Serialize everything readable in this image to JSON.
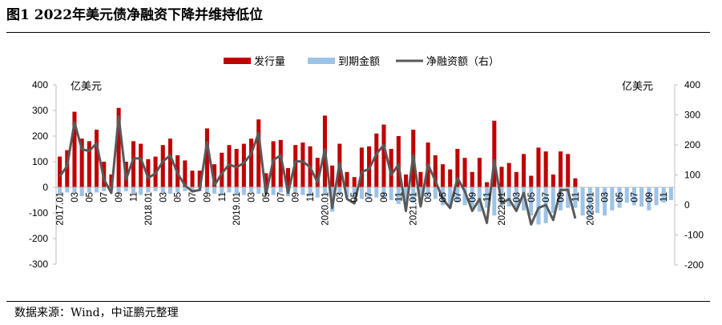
{
  "header": {
    "title": "图1   2022年美元债净融资下降并维持低位"
  },
  "footer": {
    "source": "数据来源：Wind，中证鹏元整理"
  },
  "chart_data": {
    "type": "bar",
    "title": "2022年美元债净融资下降并维持低位",
    "left_axis": {
      "unit": "亿美元",
      "ylim": [
        -300,
        400
      ],
      "ticks": [
        -300,
        -200,
        -100,
        0,
        100,
        200,
        300,
        400
      ]
    },
    "right_axis": {
      "unit": "亿美元",
      "ylim": [
        -200,
        400
      ],
      "ticks": [
        -200,
        -100,
        0,
        100,
        200,
        300,
        400
      ]
    },
    "x_labels": [
      "2017.01",
      "03",
      "05",
      "07",
      "09",
      "11",
      "2018.01",
      "03",
      "05",
      "07",
      "09",
      "11",
      "2019.01",
      "03",
      "05",
      "07",
      "09",
      "11",
      "2020.01",
      "03",
      "05",
      "07",
      "09",
      "11",
      "2021.01",
      "03",
      "05",
      "07",
      "09",
      "11",
      "2022.01",
      "03",
      "05",
      "07",
      "09",
      "11",
      "2023.01",
      "03",
      "05",
      "07",
      "09",
      "11"
    ],
    "months": [
      "2017.01",
      "2017.02",
      "2017.03",
      "2017.04",
      "2017.05",
      "2017.06",
      "2017.07",
      "2017.08",
      "2017.09",
      "2017.10",
      "2017.11",
      "2017.12",
      "2018.01",
      "2018.02",
      "2018.03",
      "2018.04",
      "2018.05",
      "2018.06",
      "2018.07",
      "2018.08",
      "2018.09",
      "2018.10",
      "2018.11",
      "2018.12",
      "2019.01",
      "2019.02",
      "2019.03",
      "2019.04",
      "2019.05",
      "2019.06",
      "2019.07",
      "2019.08",
      "2019.09",
      "2019.10",
      "2019.11",
      "2019.12",
      "2020.01",
      "2020.02",
      "2020.03",
      "2020.04",
      "2020.05",
      "2020.06",
      "2020.07",
      "2020.08",
      "2020.09",
      "2020.10",
      "2020.11",
      "2020.12",
      "2021.01",
      "2021.02",
      "2021.03",
      "2021.04",
      "2021.05",
      "2021.06",
      "2021.07",
      "2021.08",
      "2021.09",
      "2021.10",
      "2021.11",
      "2021.12",
      "2022.01",
      "2022.02",
      "2022.03",
      "2022.04",
      "2022.05",
      "2022.06",
      "2022.07",
      "2022.08",
      "2022.09",
      "2022.10",
      "2022.11",
      "2022.12",
      "2023.01",
      "2023.02",
      "2023.03",
      "2023.04",
      "2023.05",
      "2023.06",
      "2023.07",
      "2023.08",
      "2023.09",
      "2023.10",
      "2023.11",
      "2023.12"
    ],
    "series": [
      {
        "name": "发行量",
        "type": "bar",
        "axis": "left",
        "color": "#c00000",
        "values": [
          120,
          145,
          295,
          190,
          180,
          225,
          100,
          50,
          310,
          100,
          180,
          170,
          110,
          120,
          165,
          190,
          125,
          105,
          65,
          65,
          230,
          90,
          135,
          165,
          150,
          170,
          190,
          265,
          55,
          180,
          185,
          75,
          165,
          175,
          160,
          115,
          280,
          85,
          170,
          60,
          40,
          155,
          160,
          210,
          245,
          150,
          200,
          50,
          225,
          60,
          175,
          125,
          90,
          70,
          150,
          115,
          60,
          115,
          20,
          260,
          80,
          95,
          60,
          130,
          45,
          155,
          140,
          50,
          140,
          130,
          35,
          0,
          0,
          0,
          0,
          0,
          0,
          0,
          0,
          0,
          0,
          0,
          0,
          0
        ]
      },
      {
        "name": "到期金额",
        "type": "bar",
        "axis": "left",
        "color": "#9dc3e6",
        "values": [
          -25,
          -20,
          -20,
          -35,
          -20,
          -20,
          -15,
          -10,
          -25,
          -15,
          -25,
          -30,
          -20,
          -15,
          -20,
          -25,
          -20,
          -15,
          -20,
          -15,
          -20,
          -25,
          -30,
          -20,
          -25,
          -30,
          -20,
          -25,
          -20,
          -30,
          -20,
          -35,
          -20,
          -30,
          -35,
          -40,
          -30,
          -95,
          -30,
          -40,
          -35,
          -45,
          -40,
          -40,
          -45,
          -50,
          -65,
          -70,
          -60,
          -65,
          -40,
          -45,
          -70,
          -80,
          -60,
          -70,
          -80,
          -95,
          -80,
          -110,
          -75,
          -75,
          -80,
          -90,
          -110,
          -145,
          -140,
          -100,
          -90,
          -80,
          -80,
          -110,
          -120,
          -100,
          -110,
          -90,
          -80,
          -60,
          -70,
          -75,
          -90,
          -70,
          -60,
          -50
        ]
      },
      {
        "name": "净融资额（右）",
        "type": "line",
        "axis": "right",
        "color": "#595959",
        "values": [
          95,
          130,
          275,
          185,
          180,
          205,
          85,
          40,
          295,
          85,
          155,
          155,
          90,
          105,
          145,
          165,
          105,
          65,
          45,
          50,
          210,
          65,
          105,
          135,
          125,
          140,
          170,
          240,
          35,
          150,
          165,
          40,
          145,
          145,
          125,
          75,
          185,
          -10,
          140,
          20,
          5,
          110,
          120,
          170,
          200,
          100,
          135,
          -20,
          165,
          -5,
          135,
          80,
          20,
          -10,
          90,
          45,
          -20,
          20,
          -60,
          150,
          5,
          20,
          -20,
          40,
          -65,
          -10,
          0,
          -50,
          50,
          50,
          -45
        ]
      }
    ],
    "legend": [
      "发行量",
      "到期金额",
      "净融资额（右）"
    ],
    "legend_position": "top-center",
    "grid": false
  }
}
